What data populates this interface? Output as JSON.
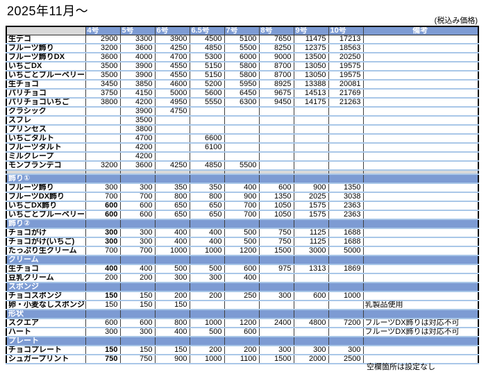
{
  "title": "2025年11月～",
  "tax_note": "(税込み価格)",
  "footer_note": "空欄箇所は設定なし",
  "columns": [
    "4号",
    "5号",
    "6号",
    "6.5号",
    "7号",
    "8号",
    "9号",
    "10号"
  ],
  "remarks_header": "備考",
  "colors": {
    "header_bg": "#7D9BD3",
    "row_divider": "#A9C7E8",
    "corner_bg": "#D9D9D9",
    "border": "#000000"
  },
  "sections": [
    {
      "header": null,
      "rows": [
        {
          "label": "生デコ",
          "v": [
            "2900",
            "3300",
            "3900",
            "4500",
            "5100",
            "7650",
            "11475",
            "17213"
          ],
          "remark": "",
          "bold_first": false
        },
        {
          "label": "フルーツ飾り",
          "v": [
            "3200",
            "3600",
            "4250",
            "4850",
            "5500",
            "8250",
            "12375",
            "18563"
          ],
          "remark": "",
          "bold_first": false
        },
        {
          "label": "フルーツ飾りDX",
          "v": [
            "3600",
            "4000",
            "4700",
            "5300",
            "6000",
            "9000",
            "13500",
            "20250"
          ],
          "remark": "",
          "bold_first": false
        },
        {
          "label": "いちごDX",
          "v": [
            "3500",
            "3900",
            "4550",
            "5150",
            "5800",
            "8700",
            "13050",
            "19575"
          ],
          "remark": "",
          "bold_first": false
        },
        {
          "label": "いちごとブルーベリー",
          "v": [
            "3500",
            "3900",
            "4550",
            "5150",
            "5800",
            "8700",
            "13050",
            "19575"
          ],
          "remark": "",
          "bold_first": false
        },
        {
          "label": "生チョコ",
          "v": [
            "3450",
            "3850",
            "4600",
            "5200",
            "5950",
            "8925",
            "13388",
            "20081"
          ],
          "remark": "",
          "bold_first": false
        },
        {
          "label": "パリチョコ",
          "v": [
            "3750",
            "4150",
            "5000",
            "5600",
            "6450",
            "9675",
            "14513",
            "21769"
          ],
          "remark": "",
          "bold_first": false
        },
        {
          "label": "パリチョコいちご",
          "v": [
            "3800",
            "4200",
            "4950",
            "5550",
            "6300",
            "9450",
            "14175",
            "21263"
          ],
          "remark": "",
          "bold_first": false
        },
        {
          "label": "クラシック",
          "v": [
            "",
            "3900",
            "4750",
            "",
            "",
            "",
            "",
            ""
          ],
          "remark": "",
          "bold_first": false
        },
        {
          "label": "スフレ",
          "v": [
            "",
            "3500",
            "",
            "",
            "",
            "",
            "",
            ""
          ],
          "remark": "",
          "bold_first": false
        },
        {
          "label": "プリンセス",
          "v": [
            "",
            "3800",
            "",
            "",
            "",
            "",
            "",
            ""
          ],
          "remark": "",
          "bold_first": false
        },
        {
          "label": "いちごタルト",
          "v": [
            "",
            "4700",
            "",
            "6600",
            "",
            "",
            "",
            ""
          ],
          "remark": "",
          "bold_first": false
        },
        {
          "label": "フルーツタルト",
          "v": [
            "",
            "4200",
            "",
            "6100",
            "",
            "",
            "",
            ""
          ],
          "remark": "",
          "bold_first": false
        },
        {
          "label": "ミルクレープ",
          "v": [
            "",
            "4200",
            "",
            "",
            "",
            "",
            "",
            ""
          ],
          "remark": "",
          "bold_first": false
        },
        {
          "label": "モンブランデコ",
          "v": [
            "3200",
            "3600",
            "4250",
            "4850",
            "5500",
            "",
            "",
            ""
          ],
          "remark": "",
          "bold_first": false
        }
      ]
    },
    {
      "header": "飾り①",
      "gap_before": true,
      "rows": [
        {
          "label": "フルーツ飾り",
          "v": [
            "300",
            "300",
            "350",
            "350",
            "400",
            "600",
            "900",
            "1350"
          ],
          "remark": "",
          "bold_first": false
        },
        {
          "label": "フルーツDX飾り",
          "v": [
            "700",
            "700",
            "800",
            "800",
            "900",
            "1350",
            "2025",
            "3038"
          ],
          "remark": "",
          "bold_first": false
        },
        {
          "label": "いちごDX飾り",
          "v": [
            "600",
            "600",
            "650",
            "650",
            "700",
            "1050",
            "1575",
            "2363"
          ],
          "remark": "",
          "bold_first": true
        },
        {
          "label": "いちごとブルーベリー",
          "v": [
            "600",
            "600",
            "650",
            "650",
            "700",
            "1050",
            "1575",
            "2363"
          ],
          "remark": "",
          "bold_first": true
        }
      ]
    },
    {
      "header": "飾り②",
      "rows": [
        {
          "label": "チョコがけ",
          "v": [
            "300",
            "300",
            "400",
            "400",
            "500",
            "750",
            "1125",
            "1688"
          ],
          "remark": "",
          "bold_first": true
        },
        {
          "label": "チョコがけ(いちご)",
          "v": [
            "300",
            "300",
            "400",
            "400",
            "500",
            "750",
            "1125",
            "1688"
          ],
          "remark": "",
          "bold_first": true
        },
        {
          "label": "たっぷり生クリーム",
          "v": [
            "700",
            "700",
            "1000",
            "1000",
            "1200",
            "1500",
            "3000",
            "5000"
          ],
          "remark": "",
          "bold_first": false
        }
      ]
    },
    {
      "header": "クリーム",
      "rows": [
        {
          "label": "生チョコ",
          "v": [
            "400",
            "400",
            "500",
            "500",
            "600",
            "975",
            "1313",
            "1869"
          ],
          "remark": "",
          "bold_first": true
        },
        {
          "label": "豆乳クリーム",
          "v": [
            "200",
            "200",
            "300",
            "300",
            "400",
            "",
            "",
            ""
          ],
          "remark": "",
          "bold_first": false
        }
      ]
    },
    {
      "header": "スポンジ",
      "rows": [
        {
          "label": "チョコスポンジ",
          "v": [
            "150",
            "150",
            "200",
            "200",
            "250",
            "300",
            "600",
            "1000"
          ],
          "remark": "",
          "bold_first": true
        },
        {
          "label": "卵・小麦なしスポンジ",
          "v": [
            "150",
            "150",
            "150",
            "",
            "",
            "",
            "",
            ""
          ],
          "remark": "乳製品使用",
          "bold_first": false
        }
      ]
    },
    {
      "header": "形状",
      "rows": [
        {
          "label": "スクエア",
          "v": [
            "600",
            "600",
            "800",
            "1000",
            "1200",
            "2400",
            "4800",
            "7200"
          ],
          "remark": "フルーツDX飾りは対応不可",
          "bold_first": false
        },
        {
          "label": "ハート",
          "v": [
            "300",
            "300",
            "400",
            "500",
            "600",
            "",
            "",
            ""
          ],
          "remark": "フルーツDX飾りは対応不可",
          "bold_first": false
        }
      ]
    },
    {
      "header": "プレート",
      "rows": [
        {
          "label": "チョコプレート",
          "v": [
            "150",
            "150",
            "150",
            "200",
            "200",
            "300",
            "300",
            "300"
          ],
          "remark": "",
          "bold_first": true
        },
        {
          "label": "シュガープリント",
          "v": [
            "750",
            "750",
            "900",
            "1000",
            "1100",
            "1500",
            "2000",
            "2500"
          ],
          "remark": "",
          "bold_first": true
        }
      ]
    }
  ]
}
